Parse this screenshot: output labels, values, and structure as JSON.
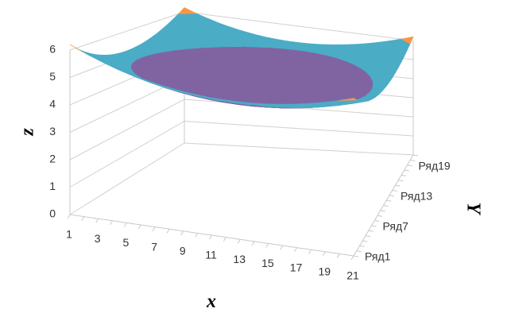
{
  "chart_data": {
    "type": "surface",
    "x_label": "x",
    "y_label": "Y",
    "z_label": "z",
    "categories": [
      1,
      null,
      3,
      null,
      5,
      null,
      7,
      null,
      9,
      null,
      11,
      null,
      13,
      null,
      15,
      null,
      17,
      null,
      19,
      null,
      21
    ],
    "zlim": [
      0,
      6
    ],
    "zticks": [
      0,
      1,
      2,
      3,
      4,
      5,
      6
    ],
    "grid": true,
    "band_colors": [
      null,
      null,
      null,
      null,
      "#8064a2",
      "#4bacc6",
      "#f79646"
    ],
    "series": [
      {
        "name": "Ряд1",
        "values": [
          6.2,
          6.01,
          5.84,
          5.69,
          5.56,
          5.45,
          5.36,
          5.29,
          5.24,
          5.21,
          5.2,
          5.21,
          5.24,
          5.29,
          5.36,
          5.45,
          5.56,
          5.69,
          5.84,
          6.01,
          6.2
        ]
      },
      {
        "name": null,
        "values": [
          6.01,
          5.82,
          5.65,
          5.5,
          5.37,
          5.26,
          5.17,
          5.1,
          5.05,
          5.02,
          5.01,
          5.02,
          5.05,
          5.1,
          5.17,
          5.26,
          5.37,
          5.5,
          5.65,
          5.82,
          6.01
        ]
      },
      {
        "name": null,
        "values": [
          5.84,
          5.65,
          5.48,
          5.33,
          5.2,
          5.09,
          5,
          4.93,
          4.88,
          4.85,
          4.84,
          4.85,
          4.88,
          4.93,
          5,
          5.09,
          5.2,
          5.33,
          5.48,
          5.65,
          5.84
        ]
      },
      {
        "name": null,
        "values": [
          5.69,
          5.5,
          5.33,
          5.18,
          5.05,
          4.94,
          4.85,
          4.78,
          4.73,
          4.7,
          4.69,
          4.7,
          4.73,
          4.78,
          4.85,
          4.94,
          5.05,
          5.18,
          5.33,
          5.5,
          5.69
        ]
      },
      {
        "name": null,
        "values": [
          5.56,
          5.37,
          5.2,
          5.05,
          4.92,
          4.81,
          4.72,
          4.65,
          4.6,
          4.57,
          4.56,
          4.57,
          4.6,
          4.65,
          4.72,
          4.81,
          4.92,
          5.05,
          5.2,
          5.37,
          5.56
        ]
      },
      {
        "name": null,
        "values": [
          5.45,
          5.26,
          5.09,
          4.94,
          4.81,
          4.7,
          4.61,
          4.54,
          4.49,
          4.46,
          4.45,
          4.46,
          4.49,
          4.54,
          4.61,
          4.7,
          4.81,
          4.94,
          5.09,
          5.26,
          5.45
        ]
      },
      {
        "name": "Ряд7",
        "values": [
          5.36,
          5.17,
          5,
          4.85,
          4.72,
          4.61,
          4.52,
          4.45,
          4.4,
          4.37,
          4.36,
          4.37,
          4.4,
          4.45,
          4.52,
          4.61,
          4.72,
          4.85,
          5,
          5.17,
          5.36
        ]
      },
      {
        "name": null,
        "values": [
          5.29,
          5.1,
          4.93,
          4.78,
          4.65,
          4.54,
          4.45,
          4.38,
          4.33,
          4.3,
          4.29,
          4.3,
          4.33,
          4.38,
          4.45,
          4.54,
          4.65,
          4.78,
          4.93,
          5.1,
          5.29
        ]
      },
      {
        "name": null,
        "values": [
          5.24,
          5.05,
          4.88,
          4.73,
          4.6,
          4.49,
          4.4,
          4.33,
          4.28,
          4.25,
          4.24,
          4.25,
          4.28,
          4.33,
          4.4,
          4.49,
          4.6,
          4.73,
          4.88,
          5.05,
          5.24
        ]
      },
      {
        "name": null,
        "values": [
          5.21,
          5.02,
          4.85,
          4.7,
          4.57,
          4.46,
          4.37,
          4.3,
          4.25,
          4.22,
          4.21,
          4.22,
          4.25,
          4.3,
          4.37,
          4.46,
          4.57,
          4.7,
          4.85,
          5.02,
          5.21
        ]
      },
      {
        "name": null,
        "values": [
          5.2,
          5.01,
          4.84,
          4.69,
          4.56,
          4.45,
          4.36,
          4.29,
          4.24,
          4.21,
          4.2,
          4.21,
          4.24,
          4.29,
          4.36,
          4.45,
          4.56,
          4.69,
          4.84,
          5.01,
          5.2
        ]
      },
      {
        "name": null,
        "values": [
          5.21,
          5.02,
          4.85,
          4.7,
          4.57,
          4.46,
          4.37,
          4.3,
          4.25,
          4.22,
          4.21,
          4.22,
          4.25,
          4.3,
          4.37,
          4.46,
          4.57,
          4.7,
          4.85,
          5.02,
          5.21
        ]
      },
      {
        "name": "Ряд13",
        "values": [
          5.24,
          5.05,
          4.88,
          4.73,
          4.6,
          4.49,
          4.4,
          4.33,
          4.28,
          4.25,
          4.24,
          4.25,
          4.28,
          4.33,
          4.4,
          4.49,
          4.6,
          4.73,
          4.88,
          5.05,
          5.24
        ]
      },
      {
        "name": null,
        "values": [
          5.29,
          5.1,
          4.93,
          4.78,
          4.65,
          4.54,
          4.45,
          4.38,
          4.33,
          4.3,
          4.29,
          4.3,
          4.33,
          4.38,
          4.45,
          4.54,
          4.65,
          4.78,
          4.93,
          5.1,
          5.29
        ]
      },
      {
        "name": null,
        "values": [
          5.36,
          5.17,
          5,
          4.85,
          4.72,
          4.61,
          4.52,
          4.45,
          4.4,
          4.37,
          4.36,
          4.37,
          4.4,
          4.45,
          4.52,
          4.61,
          4.72,
          4.85,
          5,
          5.17,
          5.36
        ]
      },
      {
        "name": null,
        "values": [
          5.45,
          5.26,
          5.09,
          4.94,
          4.81,
          4.7,
          4.61,
          4.54,
          4.49,
          4.46,
          4.45,
          4.46,
          4.49,
          4.54,
          4.61,
          4.7,
          4.81,
          4.94,
          5.09,
          5.26,
          5.45
        ]
      },
      {
        "name": null,
        "values": [
          5.56,
          5.37,
          5.2,
          5.05,
          4.92,
          4.81,
          4.72,
          4.65,
          4.6,
          4.57,
          4.56,
          4.57,
          4.6,
          4.65,
          4.72,
          4.81,
          4.92,
          5.05,
          5.2,
          5.37,
          5.56
        ]
      },
      {
        "name": null,
        "values": [
          5.69,
          5.5,
          5.33,
          5.18,
          5.05,
          4.94,
          4.85,
          4.78,
          4.73,
          4.7,
          4.69,
          4.7,
          4.73,
          4.78,
          4.85,
          4.94,
          5.05,
          5.18,
          5.33,
          5.5,
          5.69
        ]
      },
      {
        "name": "Ряд19",
        "values": [
          5.84,
          5.65,
          5.48,
          5.33,
          5.2,
          5.09,
          5,
          4.93,
          4.88,
          4.85,
          4.84,
          4.85,
          4.88,
          4.93,
          5,
          5.09,
          5.2,
          5.33,
          5.48,
          5.65,
          5.84
        ]
      },
      {
        "name": null,
        "values": [
          6.01,
          5.82,
          5.65,
          5.5,
          5.37,
          5.26,
          5.17,
          5.1,
          5.05,
          5.02,
          5.01,
          5.02,
          5.05,
          5.1,
          5.17,
          5.26,
          5.37,
          5.5,
          5.65,
          5.82,
          6.01
        ]
      },
      {
        "name": null,
        "values": [
          6.2,
          6.01,
          5.84,
          5.69,
          5.56,
          5.45,
          5.36,
          5.29,
          5.24,
          5.21,
          5.2,
          5.21,
          5.24,
          5.29,
          5.36,
          5.45,
          5.56,
          5.69,
          5.84,
          6.01,
          6.2
        ]
      }
    ]
  }
}
